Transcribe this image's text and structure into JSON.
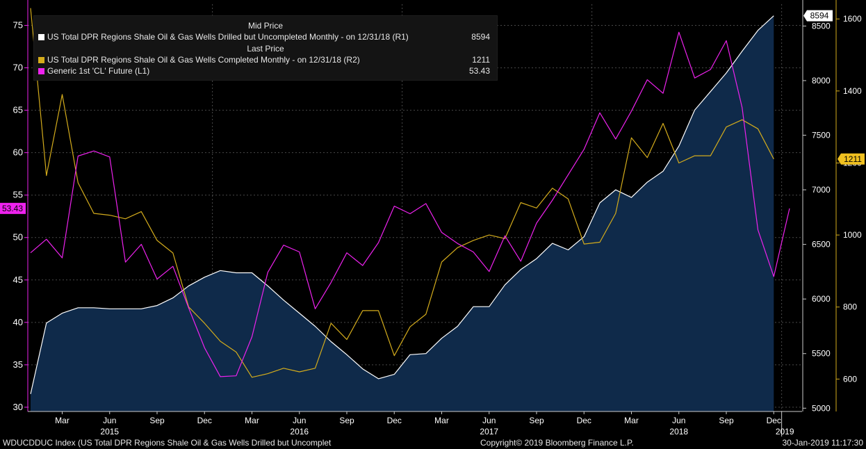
{
  "legend": {
    "header_mid": "Mid Price",
    "header_last": "Last Price",
    "rows": [
      {
        "label": "US Total DPR Regions Shale Oil & Gas Wells Drilled but Uncompleted Monthly -  on 12/31/18  (R1)",
        "value": "8594",
        "color": "#ffffff"
      },
      {
        "label": "US Total DPR Regions Shale Oil & Gas Wells Completed Monthly -  on 12/31/18  (R2)",
        "value": "1211",
        "color": "#d4ac1c"
      },
      {
        "label": "Generic 1st 'CL' Future  (L1)",
        "value": "53.43",
        "color": "#ee22ee"
      }
    ]
  },
  "footer": {
    "left": "WDUCDDUC Index (US Total DPR Regions Shale Oil & Gas Wells Drilled but Uncomplet",
    "center": "Copyright© 2019 Bloomberg Finance L.P.",
    "right": "30-Jan-2019 11:17:30"
  },
  "chart_data": {
    "type": "line",
    "x": [
      "2015-01",
      "2015-02",
      "2015-03",
      "2015-04",
      "2015-05",
      "2015-06",
      "2015-07",
      "2015-08",
      "2015-09",
      "2015-10",
      "2015-11",
      "2015-12",
      "2016-01",
      "2016-02",
      "2016-03",
      "2016-04",
      "2016-05",
      "2016-06",
      "2016-07",
      "2016-08",
      "2016-09",
      "2016-10",
      "2016-11",
      "2016-12",
      "2017-01",
      "2017-02",
      "2017-03",
      "2017-04",
      "2017-05",
      "2017-06",
      "2017-07",
      "2017-08",
      "2017-09",
      "2017-10",
      "2017-11",
      "2017-12",
      "2018-01",
      "2018-02",
      "2018-03",
      "2018-04",
      "2018-05",
      "2018-06",
      "2018-07",
      "2018-08",
      "2018-09",
      "2018-10",
      "2018-11",
      "2018-12",
      "2019-01"
    ],
    "month_labels": [
      "Mar",
      "Jun",
      "Sep",
      "Dec",
      "Mar",
      "Jun",
      "Sep",
      "Dec",
      "Mar",
      "Jun",
      "Sep",
      "Dec",
      "Mar",
      "Jun",
      "Sep",
      "Dec"
    ],
    "month_label_index": [
      2,
      5,
      8,
      11,
      14,
      17,
      20,
      23,
      26,
      29,
      32,
      35,
      38,
      41,
      44,
      47
    ],
    "year_labels": [
      "2015",
      "2016",
      "2017",
      "2018",
      "2019"
    ],
    "year_label_index": [
      5,
      17,
      29,
      41,
      47.7
    ],
    "axes": {
      "left": {
        "ticks": [
          30,
          35,
          40,
          45,
          50,
          55,
          60,
          65,
          70,
          75
        ],
        "range": [
          29.5,
          77.5
        ],
        "last_value_tag": "53.43",
        "color": "#ee22ee"
      },
      "r1": {
        "ticks": [
          5000,
          5500,
          6000,
          6500,
          7000,
          7500,
          8000,
          8500
        ],
        "range": [
          4970,
          8700
        ],
        "last_value_tag": "8594"
      },
      "r2": {
        "ticks": [
          600,
          800,
          1000,
          1200,
          1400,
          1600
        ],
        "range": [
          510,
          1641
        ],
        "last_value_tag": "1211",
        "tick_color": "#d4ac1c",
        "tag_color": "#f0c020"
      }
    },
    "series": [
      {
        "name": "US Total DPR Regions Shale Oil & Gas Wells Drilled but Uncompleted Monthly",
        "axis": "r1",
        "style": "area",
        "color": "#ffffff",
        "fill": "#0f2a4a",
        "values": [
          5130,
          5780,
          5870,
          5920,
          5920,
          5910,
          5910,
          5910,
          5940,
          6010,
          6120,
          6200,
          6260,
          6240,
          6240,
          6120,
          5990,
          5870,
          5750,
          5610,
          5490,
          5360,
          5270,
          5310,
          5490,
          5500,
          5640,
          5750,
          5930,
          5930,
          6130,
          6270,
          6370,
          6510,
          6450,
          6570,
          6880,
          7000,
          6930,
          7070,
          7170,
          7400,
          7730,
          7900,
          8070,
          8270,
          8460,
          8594,
          null
        ]
      },
      {
        "name": "US Total DPR Regions Shale Oil & Gas Wells Completed Monthly",
        "axis": "r2",
        "color": "#d4ac1c",
        "values": [
          1630,
          1165,
          1390,
          1145,
          1060,
          1055,
          1045,
          1065,
          985,
          950,
          800,
          755,
          705,
          675,
          605,
          615,
          630,
          620,
          630,
          755,
          710,
          790,
          790,
          665,
          745,
          780,
          925,
          965,
          985,
          1000,
          990,
          1090,
          1075,
          1130,
          1100,
          975,
          980,
          1060,
          1270,
          1215,
          1310,
          1200,
          1220,
          1220,
          1300,
          1320,
          1295,
          1211,
          null
        ]
      },
      {
        "name": "Generic 1st 'CL' Future",
        "axis": "left",
        "color": "#ee22ee",
        "values": [
          48.2,
          49.8,
          47.6,
          59.6,
          60.2,
          59.5,
          47.1,
          49.2,
          45.1,
          46.6,
          41.7,
          37.0,
          33.6,
          33.7,
          38.3,
          45.9,
          49.1,
          48.3,
          41.6,
          44.7,
          48.2,
          46.7,
          49.4,
          53.7,
          52.8,
          54.0,
          50.6,
          49.3,
          48.3,
          46.0,
          50.2,
          47.2,
          51.7,
          54.4,
          57.4,
          60.4,
          64.7,
          61.6,
          64.9,
          68.6,
          67.0,
          74.2,
          68.8,
          69.8,
          73.2,
          65.3,
          50.9,
          45.4,
          53.43
        ]
      }
    ]
  }
}
